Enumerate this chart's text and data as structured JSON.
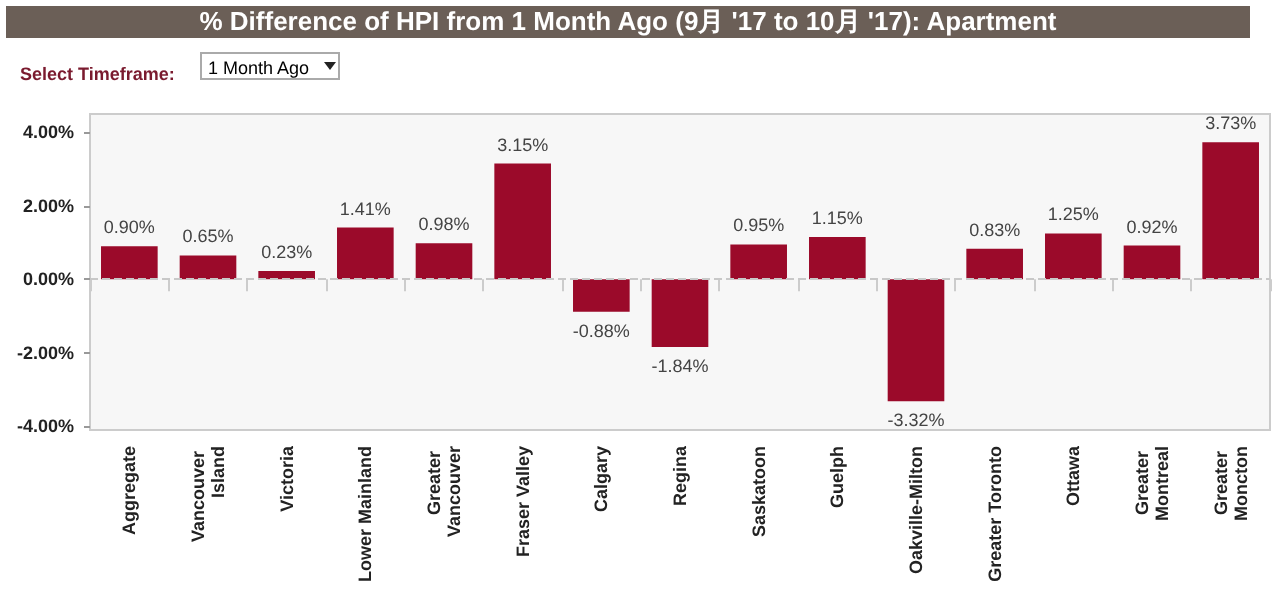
{
  "chart_data": {
    "type": "bar",
    "title": "% Difference of HPI from 1 Month Ago (9月 '17 to 10月 '17): Apartment",
    "annotations": [
      "Select Timeframe:",
      "1 Month Ago"
    ],
    "categories": [
      "Aggregate",
      "Vancouver Island",
      "Victoria",
      "Lower Mainland",
      "Greater Vancouver",
      "Fraser Valley",
      "Calgary",
      "Regina",
      "Saskatoon",
      "Guelph",
      "Oakville-Milton",
      "Greater Toronto",
      "Ottawa",
      "Greater Montreal",
      "Greater Moncton"
    ],
    "values": [
      0.9,
      0.65,
      0.23,
      1.41,
      0.98,
      3.15,
      -0.88,
      -1.84,
      0.95,
      1.15,
      -3.32,
      0.83,
      1.25,
      0.92,
      3.73
    ],
    "value_labels": [
      "0.90%",
      "0.65%",
      "0.23%",
      "1.41%",
      "0.98%",
      "3.15%",
      "-0.88%",
      "-1.84%",
      "0.95%",
      "1.15%",
      "-3.32%",
      "0.83%",
      "1.25%",
      "0.92%",
      "3.73%"
    ],
    "color": "#9b0a2a",
    "ylim": [
      -4.1,
      4.5
    ],
    "yticks": [
      {
        "value": -4,
        "label": "-4.00%"
      },
      {
        "value": -2,
        "label": "-2.00%"
      },
      {
        "value": 0,
        "label": "0.00%"
      },
      {
        "value": 2,
        "label": "2.00%"
      },
      {
        "value": 4,
        "label": "4.00%"
      }
    ],
    "ref_lines": [
      {
        "axis": "y",
        "value": 0,
        "color": "#c8c8c8",
        "line_style": "dashed"
      }
    ],
    "grid": false
  }
}
